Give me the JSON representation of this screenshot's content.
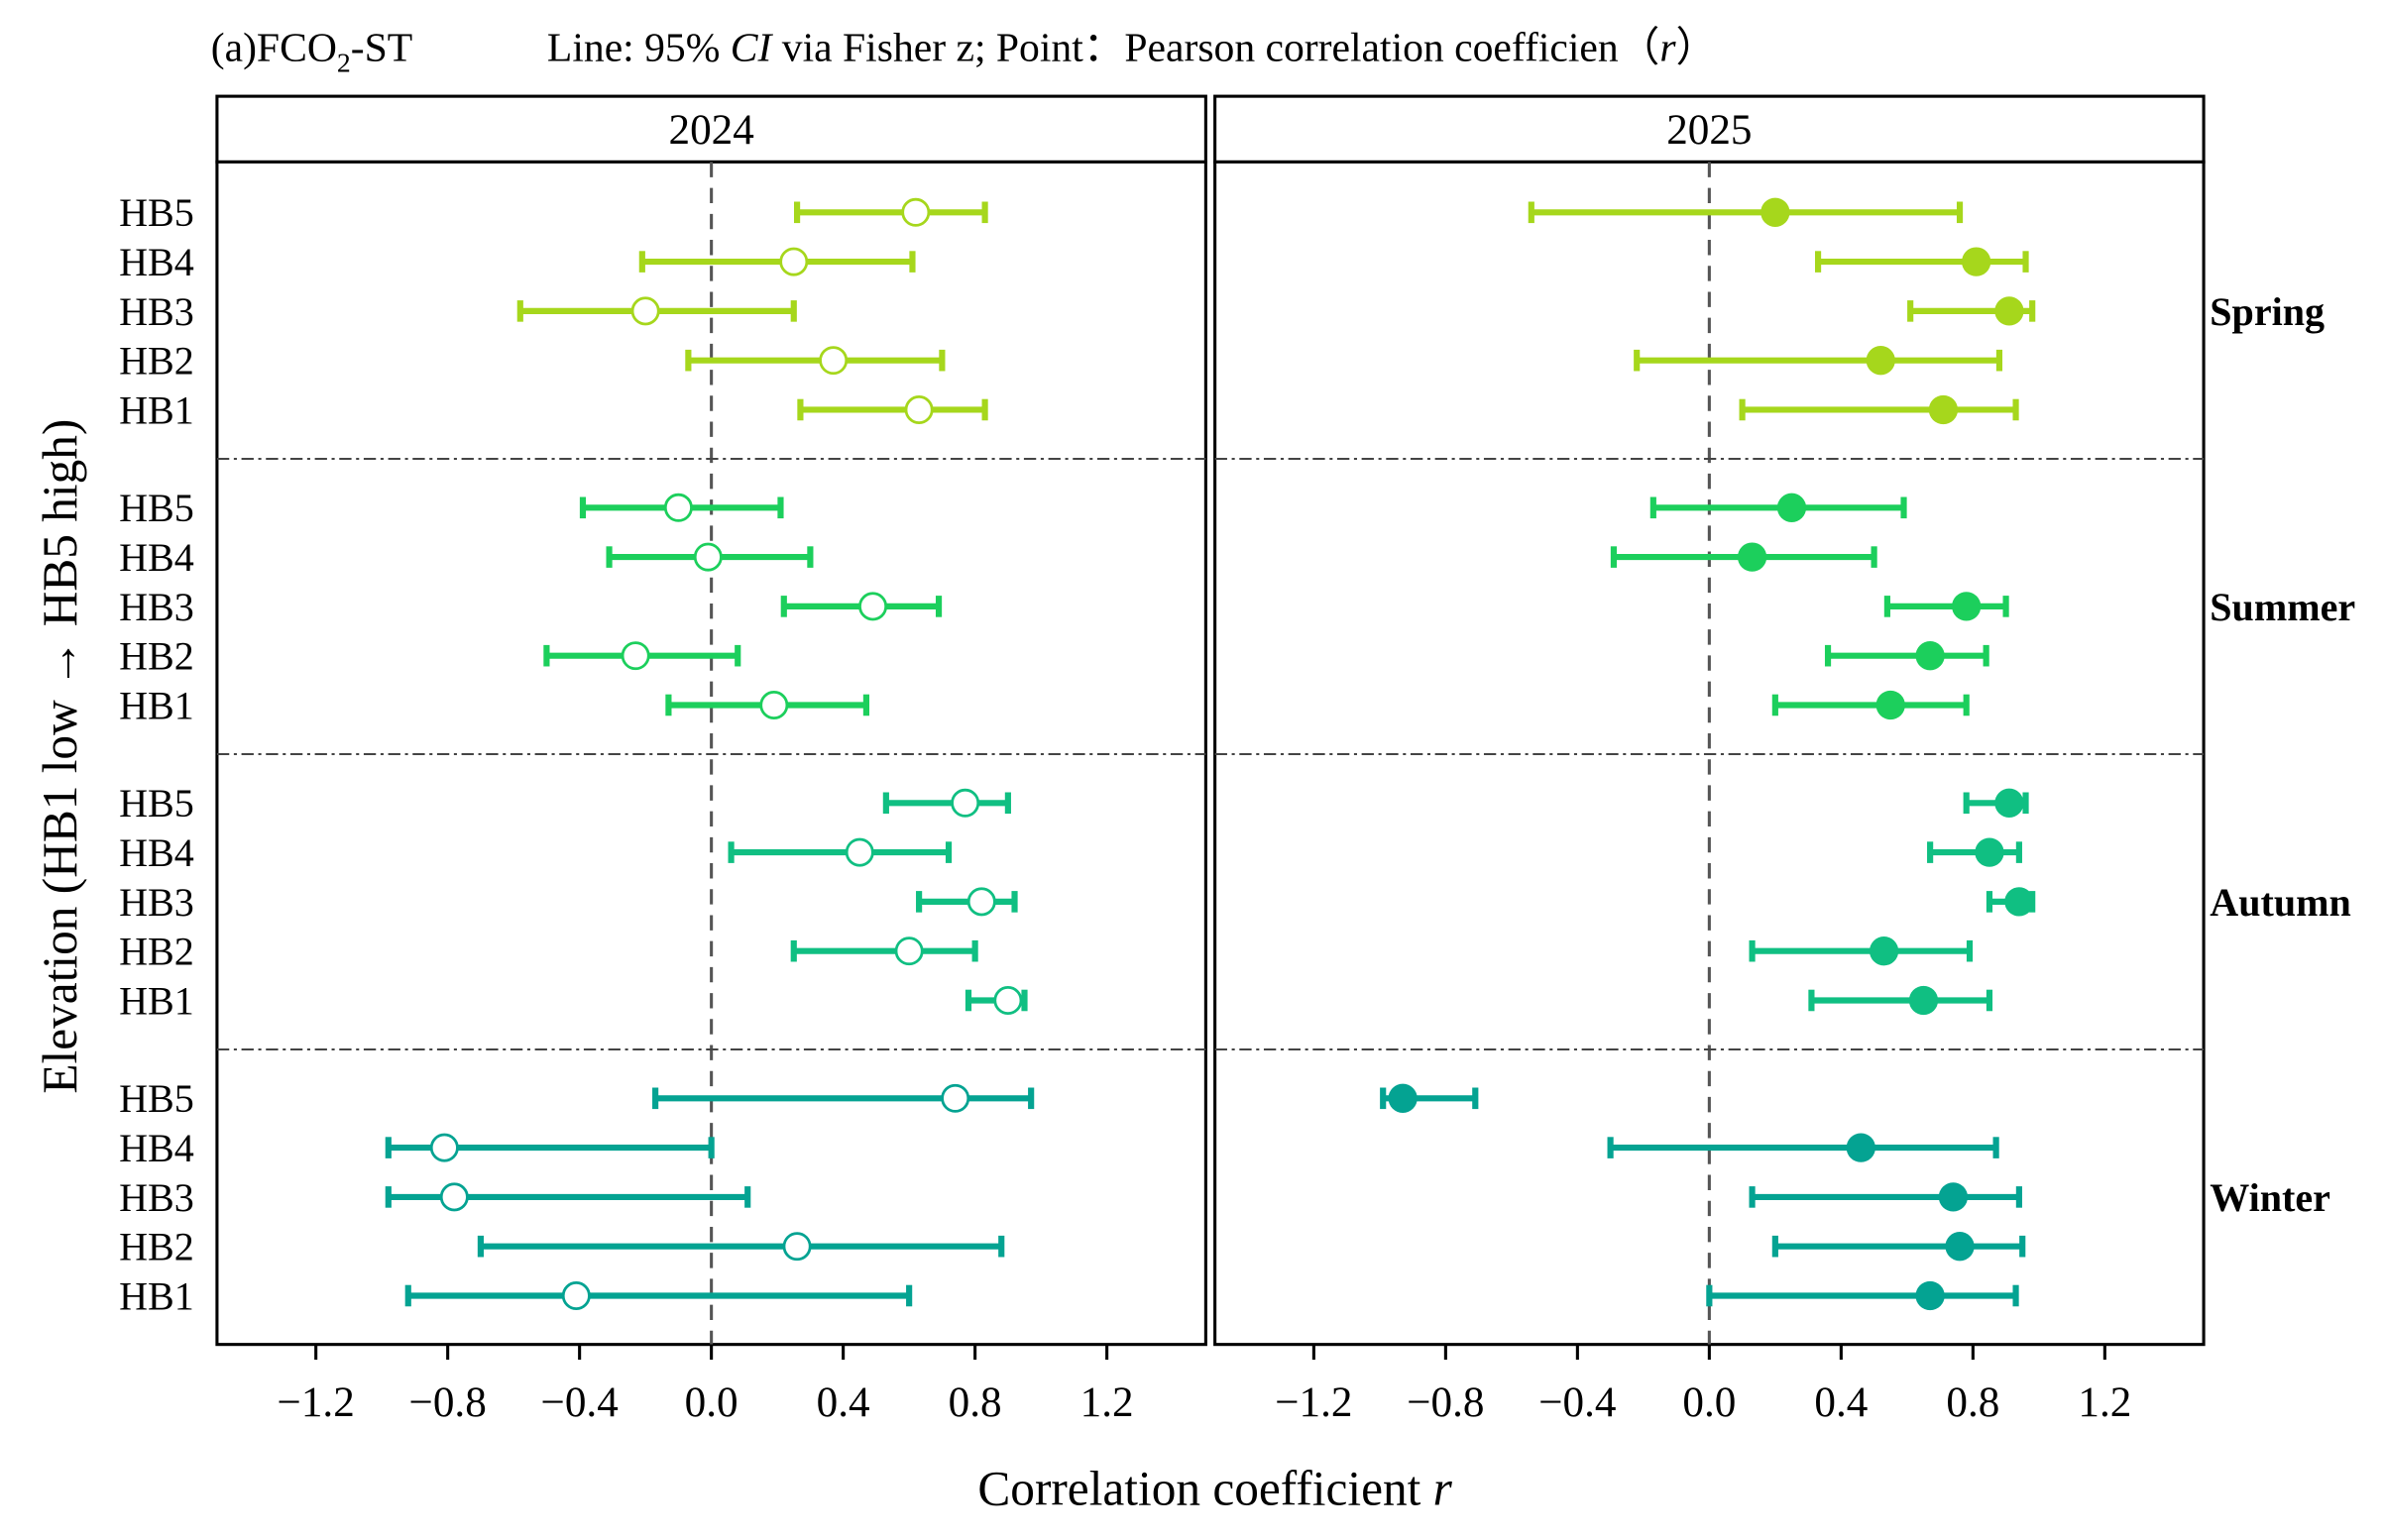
{
  "chart_data": {
    "type": "forest",
    "title": {
      "panel_tag": "(a)FCO",
      "panel_tag_sub": "2",
      "panel_tag_suffix": "-ST",
      "legend_prefix": "Line: 95% ",
      "legend_ci": "CI",
      "legend_mid": " via Fisher z; Point：Pearson correlation coefficien（",
      "legend_r": "r",
      "legend_end": "）"
    },
    "xlabel": "Correlation coefficient ",
    "xlabel_var": "r",
    "ylabel": "Elevation (HB1 low → HB5 high)",
    "xlim": [
      -1.5,
      1.5
    ],
    "xticks": [
      -1.2,
      -0.8,
      -0.4,
      0.0,
      0.4,
      0.8,
      1.2
    ],
    "xtick_labels": [
      "−1.2",
      "−0.8",
      "−0.4",
      "0.0",
      "0.4",
      "0.8",
      "1.2"
    ],
    "reference_line": 0,
    "sites": [
      "HB5",
      "HB4",
      "HB3",
      "HB2",
      "HB1"
    ],
    "seasons": [
      {
        "name": "Spring",
        "color": "#a6d71c"
      },
      {
        "name": "Summer",
        "color": "#1ccf5c"
      },
      {
        "name": "Autumn",
        "color": "#10bf82"
      },
      {
        "name": "Winter",
        "color": "#04a392"
      }
    ],
    "panels": [
      {
        "year": "2024",
        "marker": "open",
        "data": {
          "Spring": [
            [
              0.26,
              0.62,
              0.83
            ],
            [
              -0.21,
              0.25,
              0.61
            ],
            [
              -0.58,
              -0.2,
              0.25
            ],
            [
              -0.07,
              0.37,
              0.7
            ],
            [
              0.27,
              0.63,
              0.83
            ]
          ],
          "Summer": [
            [
              -0.39,
              -0.1,
              0.21
            ],
            [
              -0.31,
              -0.01,
              0.3
            ],
            [
              0.22,
              0.49,
              0.69
            ],
            [
              -0.5,
              -0.23,
              0.08
            ],
            [
              -0.13,
              0.19,
              0.47
            ]
          ],
          "Autumn": [
            [
              0.53,
              0.77,
              0.9
            ],
            [
              0.06,
              0.45,
              0.72
            ],
            [
              0.63,
              0.82,
              0.92
            ],
            [
              0.25,
              0.6,
              0.8
            ],
            [
              0.78,
              0.9,
              0.95
            ]
          ],
          "Winter": [
            [
              -0.17,
              0.74,
              0.97
            ],
            [
              -0.98,
              -0.81,
              0.0
            ],
            [
              -0.98,
              -0.78,
              0.11
            ],
            [
              -0.7,
              0.26,
              0.88
            ],
            [
              -0.92,
              -0.41,
              0.6
            ]
          ]
        }
      },
      {
        "year": "2025",
        "marker": "filled",
        "data": {
          "Spring": [
            [
              -0.54,
              0.2,
              0.76
            ],
            [
              0.33,
              0.81,
              0.96
            ],
            [
              0.61,
              0.91,
              0.98
            ],
            [
              -0.22,
              0.52,
              0.88
            ],
            [
              0.1,
              0.71,
              0.93
            ]
          ],
          "Summer": [
            [
              -0.17,
              0.25,
              0.59
            ],
            [
              -0.29,
              0.13,
              0.5
            ],
            [
              0.54,
              0.78,
              0.9
            ],
            [
              0.36,
              0.67,
              0.84
            ],
            [
              0.2,
              0.55,
              0.78
            ]
          ],
          "Autumn": [
            [
              0.78,
              0.91,
              0.96
            ],
            [
              0.67,
              0.85,
              0.94
            ],
            [
              0.85,
              0.94,
              0.98
            ],
            [
              0.13,
              0.53,
              0.79
            ],
            [
              0.31,
              0.65,
              0.85
            ]
          ],
          "Winter": [
            [
              -0.99,
              -0.93,
              -0.71
            ],
            [
              -0.3,
              0.46,
              0.87
            ],
            [
              0.13,
              0.74,
              0.94
            ],
            [
              0.2,
              0.76,
              0.95
            ],
            [
              0.0,
              0.67,
              0.93
            ]
          ]
        }
      }
    ]
  }
}
